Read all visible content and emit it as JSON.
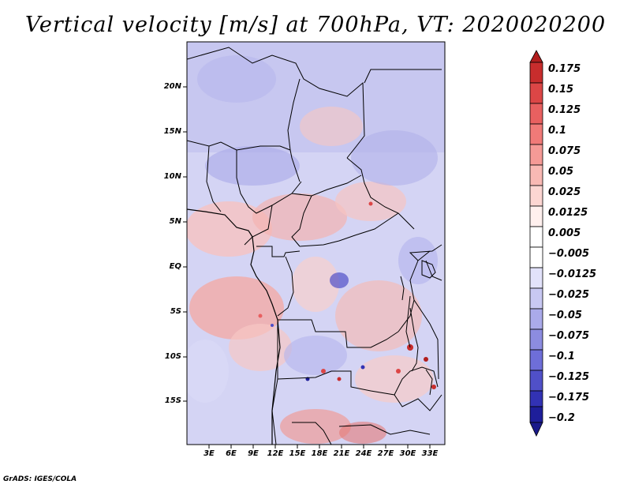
{
  "title": "Vertical velocity [m/s] at 700hPa, VT: 2020020200",
  "footer": "GrADS: IGES/COLA",
  "map": {
    "y_labels": [
      "20N",
      "15N",
      "10N",
      "5N",
      "EQ",
      "5S",
      "10S",
      "15S"
    ],
    "x_labels": [
      "3E",
      "6E",
      "9E",
      "12E",
      "15E",
      "18E",
      "21E",
      "24E",
      "27E",
      "30E",
      "33E"
    ]
  },
  "colorbar": {
    "labels": [
      "0.175",
      "0.15",
      "0.125",
      "0.1",
      "0.075",
      "0.05",
      "0.025",
      "0.0125",
      "0.005",
      "−0.005",
      "−0.0125",
      "−0.025",
      "−0.05",
      "−0.075",
      "−0.1",
      "−0.125",
      "−0.175",
      "−0.2"
    ],
    "colors": [
      "#b21e1e",
      "#c82d2d",
      "#dc4646",
      "#e86060",
      "#f07a78",
      "#f59a96",
      "#f9b9b4",
      "#fcd6d2",
      "#fff0ee",
      "#ffffff",
      "#e2e2fa",
      "#c8c8f2",
      "#aaaaea",
      "#8c8ce0",
      "#6e6ed8",
      "#5050c8",
      "#3232b4",
      "#1e1e9a",
      "#1a1a8a"
    ]
  }
}
